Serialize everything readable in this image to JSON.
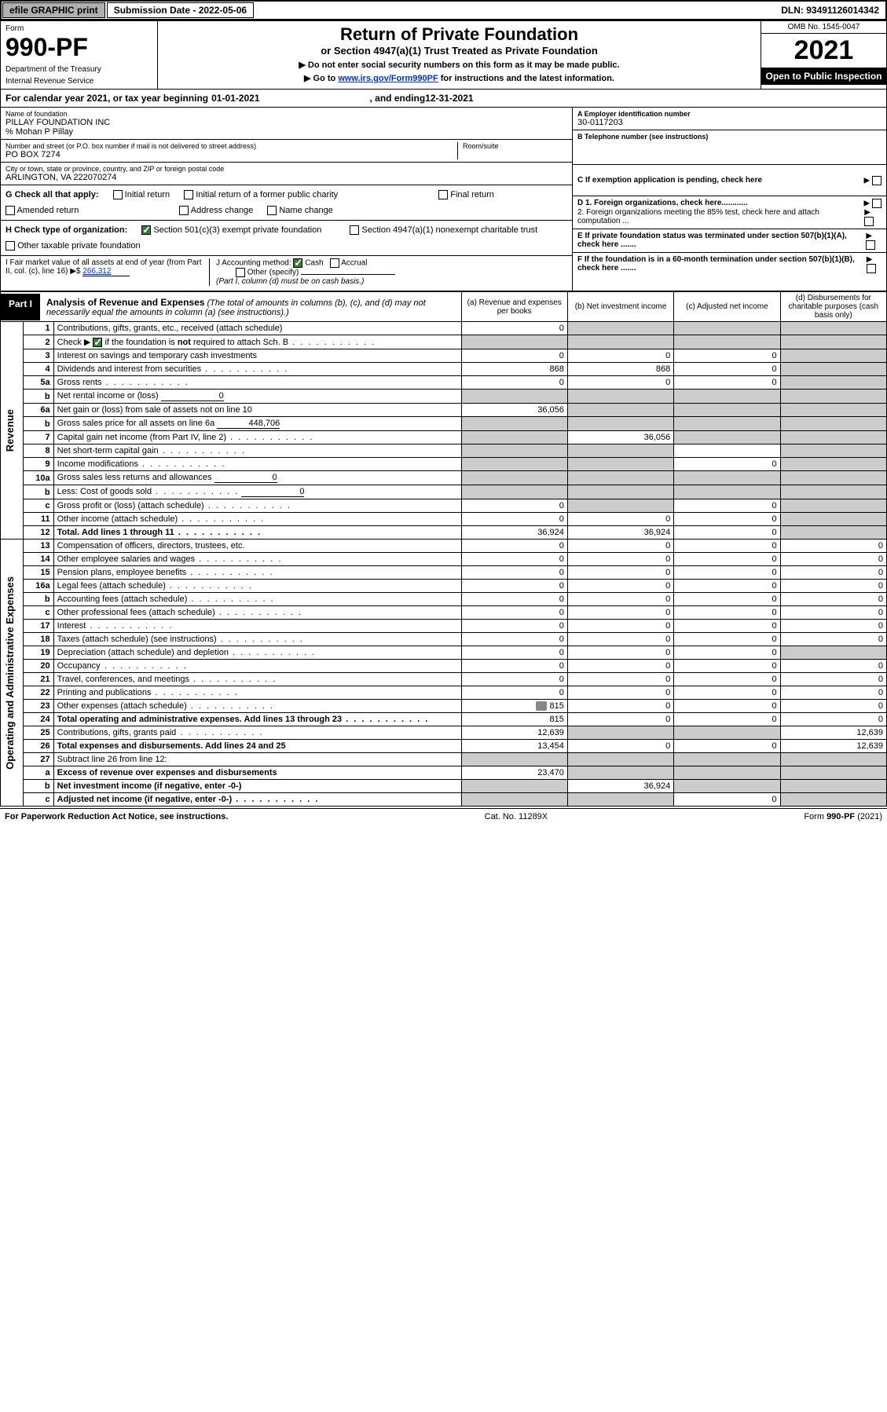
{
  "topbar": {
    "efile": "efile GRAPHIC print",
    "submission_label": "Submission Date - 2022-05-06",
    "dln": "DLN: 93491126014342"
  },
  "header": {
    "form_label": "Form",
    "form_number": "990-PF",
    "dept1": "Department of the Treasury",
    "dept2": "Internal Revenue Service",
    "title": "Return of Private Foundation",
    "subtitle": "or Section 4947(a)(1) Trust Treated as Private Foundation",
    "note1": "▶ Do not enter social security numbers on this form as it may be made public.",
    "note2_pre": "▶ Go to ",
    "note2_link": "www.irs.gov/Form990PF",
    "note2_post": " for instructions and the latest information.",
    "omb": "OMB No. 1545-0047",
    "year": "2021",
    "inspect": "Open to Public Inspection"
  },
  "calrow": {
    "prefix": "For calendar year 2021, or tax year beginning ",
    "begin": "01-01-2021",
    "mid": ", and ending ",
    "end": "12-31-2021"
  },
  "info": {
    "name_lbl": "Name of foundation",
    "name": "PILLAY FOUNDATION INC",
    "care": "% Mohan P Pillay",
    "addr_lbl": "Number and street (or P.O. box number if mail is not delivered to street address)",
    "addr": "PO BOX 7274",
    "room_lbl": "Room/suite",
    "city_lbl": "City or town, state or province, country, and ZIP or foreign postal code",
    "city": "ARLINGTON, VA  222070274",
    "ein_lbl": "A Employer identification number",
    "ein": "30-0117203",
    "tel_lbl": "B Telephone number (see instructions)",
    "c_lbl": "C If exemption application is pending, check here",
    "d1": "D 1. Foreign organizations, check here............",
    "d2": "2. Foreign organizations meeting the 85% test, check here and attach computation ...",
    "e": "E  If private foundation status was terminated under section 507(b)(1)(A), check here .......",
    "f": "F  If the foundation is in a 60-month termination under section 507(b)(1)(B), check here .......",
    "g_lbl": "G Check all that apply:",
    "g_opts": [
      "Initial return",
      "Initial return of a former public charity",
      "Final return",
      "Amended return",
      "Address change",
      "Name change"
    ],
    "h_lbl": "H Check type of organization:",
    "h_opt1": "Section 501(c)(3) exempt private foundation",
    "h_opt2": "Section 4947(a)(1) nonexempt charitable trust",
    "h_opt3": "Other taxable private foundation",
    "i_lbl": "I Fair market value of all assets at end of year (from Part II, col. (c), line 16) ▶$ ",
    "i_val": "266,312",
    "j_lbl": "J Accounting method:",
    "j_cash": "Cash",
    "j_accr": "Accrual",
    "j_other": "Other (specify)",
    "j_note": "(Part I, column (d) must be on cash basis.)"
  },
  "part1": {
    "label": "Part I",
    "title": "Analysis of Revenue and Expenses",
    "title_note": " (The total of amounts in columns (b), (c), and (d) may not necessarily equal the amounts in column (a) (see instructions).)",
    "cols": {
      "a": "(a)   Revenue and expenses per books",
      "b": "(b)   Net investment income",
      "c": "(c)   Adjusted net income",
      "d": "(d)   Disbursements for charitable purposes (cash basis only)"
    }
  },
  "sidelabels": {
    "rev": "Revenue",
    "exp": "Operating and Administrative Expenses"
  },
  "rows": [
    {
      "n": "1",
      "desc": "Contributions, gifts, grants, etc., received (attach schedule)",
      "a": "0",
      "b": "",
      "c": "",
      "d": "",
      "g": [
        "",
        "b",
        "c",
        "d"
      ]
    },
    {
      "n": "2",
      "desc": "Check ▶ ☑ if the foundation is not required to attach Sch. B",
      "dots": true,
      "a": "",
      "b": "",
      "c": "",
      "d": "",
      "g": [
        "a",
        "b",
        "c",
        "d"
      ],
      "chk": true
    },
    {
      "n": "3",
      "desc": "Interest on savings and temporary cash investments",
      "a": "0",
      "b": "0",
      "c": "0",
      "d": "",
      "g": [
        "d"
      ]
    },
    {
      "n": "4",
      "desc": "Dividends and interest from securities",
      "dots": true,
      "a": "868",
      "b": "868",
      "c": "0",
      "d": "",
      "g": [
        "d"
      ]
    },
    {
      "n": "5a",
      "desc": "Gross rents",
      "dots": true,
      "a": "0",
      "b": "0",
      "c": "0",
      "d": "",
      "g": [
        "d"
      ]
    },
    {
      "n": "b",
      "desc": "Net rental income or (loss)",
      "inline": "0",
      "a": "",
      "b": "",
      "c": "",
      "d": "",
      "g": [
        "a",
        "b",
        "c",
        "d"
      ]
    },
    {
      "n": "6a",
      "desc": "Net gain or (loss) from sale of assets not on line 10",
      "a": "36,056",
      "b": "",
      "c": "",
      "d": "",
      "g": [
        "b",
        "c",
        "d"
      ]
    },
    {
      "n": "b",
      "desc": "Gross sales price for all assets on line 6a",
      "inline": "448,706",
      "a": "",
      "b": "",
      "c": "",
      "d": "",
      "g": [
        "a",
        "b",
        "c",
        "d"
      ]
    },
    {
      "n": "7",
      "desc": "Capital gain net income (from Part IV, line 2)",
      "dots": true,
      "a": "",
      "b": "36,056",
      "c": "",
      "d": "",
      "g": [
        "a",
        "c",
        "d"
      ]
    },
    {
      "n": "8",
      "desc": "Net short-term capital gain",
      "dots": true,
      "a": "",
      "b": "",
      "c": "",
      "d": "",
      "g": [
        "a",
        "b",
        "d"
      ]
    },
    {
      "n": "9",
      "desc": "Income modifications",
      "dots": true,
      "a": "",
      "b": "",
      "c": "0",
      "d": "",
      "g": [
        "a",
        "b",
        "d"
      ]
    },
    {
      "n": "10a",
      "desc": "Gross sales less returns and allowances",
      "inline": "0",
      "a": "",
      "b": "",
      "c": "",
      "d": "",
      "g": [
        "a",
        "b",
        "c",
        "d"
      ]
    },
    {
      "n": "b",
      "desc": "Less: Cost of goods sold",
      "dots": true,
      "inline": "0",
      "a": "",
      "b": "",
      "c": "",
      "d": "",
      "g": [
        "a",
        "b",
        "c",
        "d"
      ]
    },
    {
      "n": "c",
      "desc": "Gross profit or (loss) (attach schedule)",
      "dots": true,
      "a": "0",
      "b": "",
      "c": "0",
      "d": "",
      "g": [
        "b",
        "d"
      ]
    },
    {
      "n": "11",
      "desc": "Other income (attach schedule)",
      "dots": true,
      "a": "0",
      "b": "0",
      "c": "0",
      "d": "",
      "g": [
        "d"
      ]
    },
    {
      "n": "12",
      "desc": "Total. Add lines 1 through 11",
      "dots": true,
      "bold": true,
      "a": "36,924",
      "b": "36,924",
      "c": "0",
      "d": "",
      "g": [
        "d"
      ]
    },
    {
      "n": "13",
      "desc": "Compensation of officers, directors, trustees, etc.",
      "a": "0",
      "b": "0",
      "c": "0",
      "d": "0"
    },
    {
      "n": "14",
      "desc": "Other employee salaries and wages",
      "dots": true,
      "a": "0",
      "b": "0",
      "c": "0",
      "d": "0"
    },
    {
      "n": "15",
      "desc": "Pension plans, employee benefits",
      "dots": true,
      "a": "0",
      "b": "0",
      "c": "0",
      "d": "0"
    },
    {
      "n": "16a",
      "desc": "Legal fees (attach schedule)",
      "dots": true,
      "a": "0",
      "b": "0",
      "c": "0",
      "d": "0"
    },
    {
      "n": "b",
      "desc": "Accounting fees (attach schedule)",
      "dots": true,
      "a": "0",
      "b": "0",
      "c": "0",
      "d": "0"
    },
    {
      "n": "c",
      "desc": "Other professional fees (attach schedule)",
      "dots": true,
      "a": "0",
      "b": "0",
      "c": "0",
      "d": "0"
    },
    {
      "n": "17",
      "desc": "Interest",
      "dots": true,
      "a": "0",
      "b": "0",
      "c": "0",
      "d": "0"
    },
    {
      "n": "18",
      "desc": "Taxes (attach schedule) (see instructions)",
      "dots": true,
      "a": "0",
      "b": "0",
      "c": "0",
      "d": "0"
    },
    {
      "n": "19",
      "desc": "Depreciation (attach schedule) and depletion",
      "dots": true,
      "a": "0",
      "b": "0",
      "c": "0",
      "d": "",
      "g": [
        "d"
      ]
    },
    {
      "n": "20",
      "desc": "Occupancy",
      "dots": true,
      "a": "0",
      "b": "0",
      "c": "0",
      "d": "0"
    },
    {
      "n": "21",
      "desc": "Travel, conferences, and meetings",
      "dots": true,
      "a": "0",
      "b": "0",
      "c": "0",
      "d": "0"
    },
    {
      "n": "22",
      "desc": "Printing and publications",
      "dots": true,
      "a": "0",
      "b": "0",
      "c": "0",
      "d": "0"
    },
    {
      "n": "23",
      "desc": "Other expenses (attach schedule)",
      "dots": true,
      "icon": true,
      "a": "815",
      "b": "0",
      "c": "0",
      "d": "0"
    },
    {
      "n": "24",
      "desc": "Total operating and administrative expenses. Add lines 13 through 23",
      "dots": true,
      "bold": true,
      "a": "815",
      "b": "0",
      "c": "0",
      "d": "0"
    },
    {
      "n": "25",
      "desc": "Contributions, gifts, grants paid",
      "dots": true,
      "a": "12,639",
      "b": "",
      "c": "",
      "d": "12,639",
      "g": [
        "b",
        "c"
      ]
    },
    {
      "n": "26",
      "desc": "Total expenses and disbursements. Add lines 24 and 25",
      "bold": true,
      "a": "13,454",
      "b": "0",
      "c": "0",
      "d": "12,639"
    },
    {
      "n": "27",
      "desc": "Subtract line 26 from line 12:",
      "a": "",
      "b": "",
      "c": "",
      "d": "",
      "g": [
        "a",
        "b",
        "c",
        "d"
      ]
    },
    {
      "n": "a",
      "desc": "Excess of revenue over expenses and disbursements",
      "bold": true,
      "a": "23,470",
      "b": "",
      "c": "",
      "d": "",
      "g": [
        "b",
        "c",
        "d"
      ]
    },
    {
      "n": "b",
      "desc": "Net investment income (if negative, enter -0-)",
      "bold": true,
      "a": "",
      "b": "36,924",
      "c": "",
      "d": "",
      "g": [
        "a",
        "c",
        "d"
      ]
    },
    {
      "n": "c",
      "desc": "Adjusted net income (if negative, enter -0-)",
      "dots": true,
      "bold": true,
      "a": "",
      "b": "",
      "c": "0",
      "d": "",
      "g": [
        "a",
        "b",
        "d"
      ]
    }
  ],
  "footer": {
    "left": "For Paperwork Reduction Act Notice, see instructions.",
    "mid": "Cat. No. 11289X",
    "right": "Form 990-PF (2021)"
  },
  "colors": {
    "grey": "#cccccc",
    "link": "#0033cc",
    "black": "#000000"
  }
}
